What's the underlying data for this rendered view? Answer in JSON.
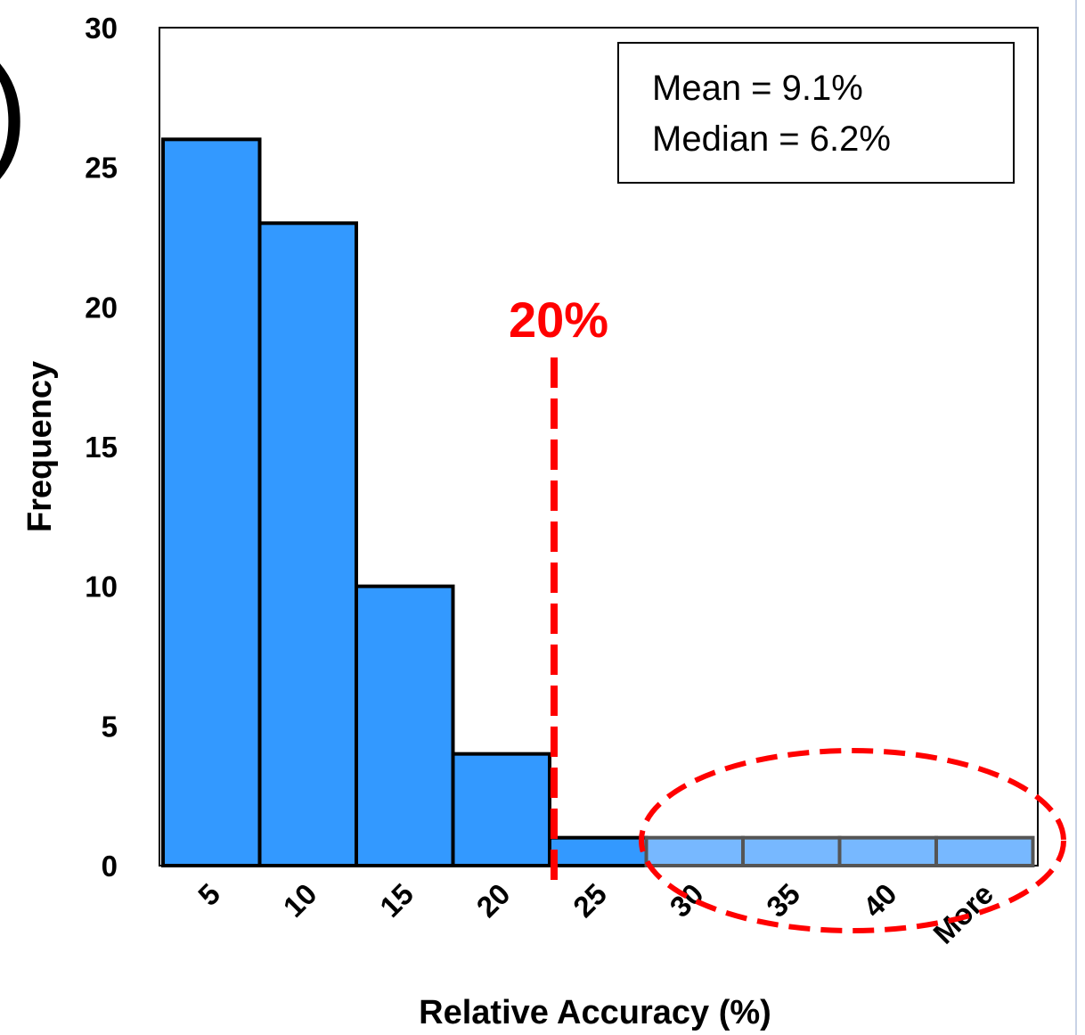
{
  "chart_data": {
    "type": "bar",
    "title": "",
    "xlabel": "Relative Accuracy (%)",
    "ylabel": "Frequency",
    "categories": [
      "5",
      "10",
      "15",
      "20",
      "25",
      "30",
      "35",
      "40",
      "More"
    ],
    "values": [
      26,
      23,
      10,
      4,
      1,
      1,
      1,
      1,
      1
    ],
    "highlighted_categories": [
      "30",
      "35",
      "40",
      "More"
    ],
    "ylim": [
      0,
      30
    ],
    "yticks": [
      "0",
      "5",
      "10",
      "15",
      "20",
      "25",
      "30"
    ],
    "grid": false,
    "colors": {
      "bar": "#3399ff",
      "bar_highlighted": "#77b8ff",
      "threshold": "#ff0000"
    },
    "stats_box": {
      "line1": "Mean = 9.1%",
      "line2": "Median = 6.2%"
    },
    "threshold": {
      "label": "20%"
    },
    "fragment": ")"
  }
}
